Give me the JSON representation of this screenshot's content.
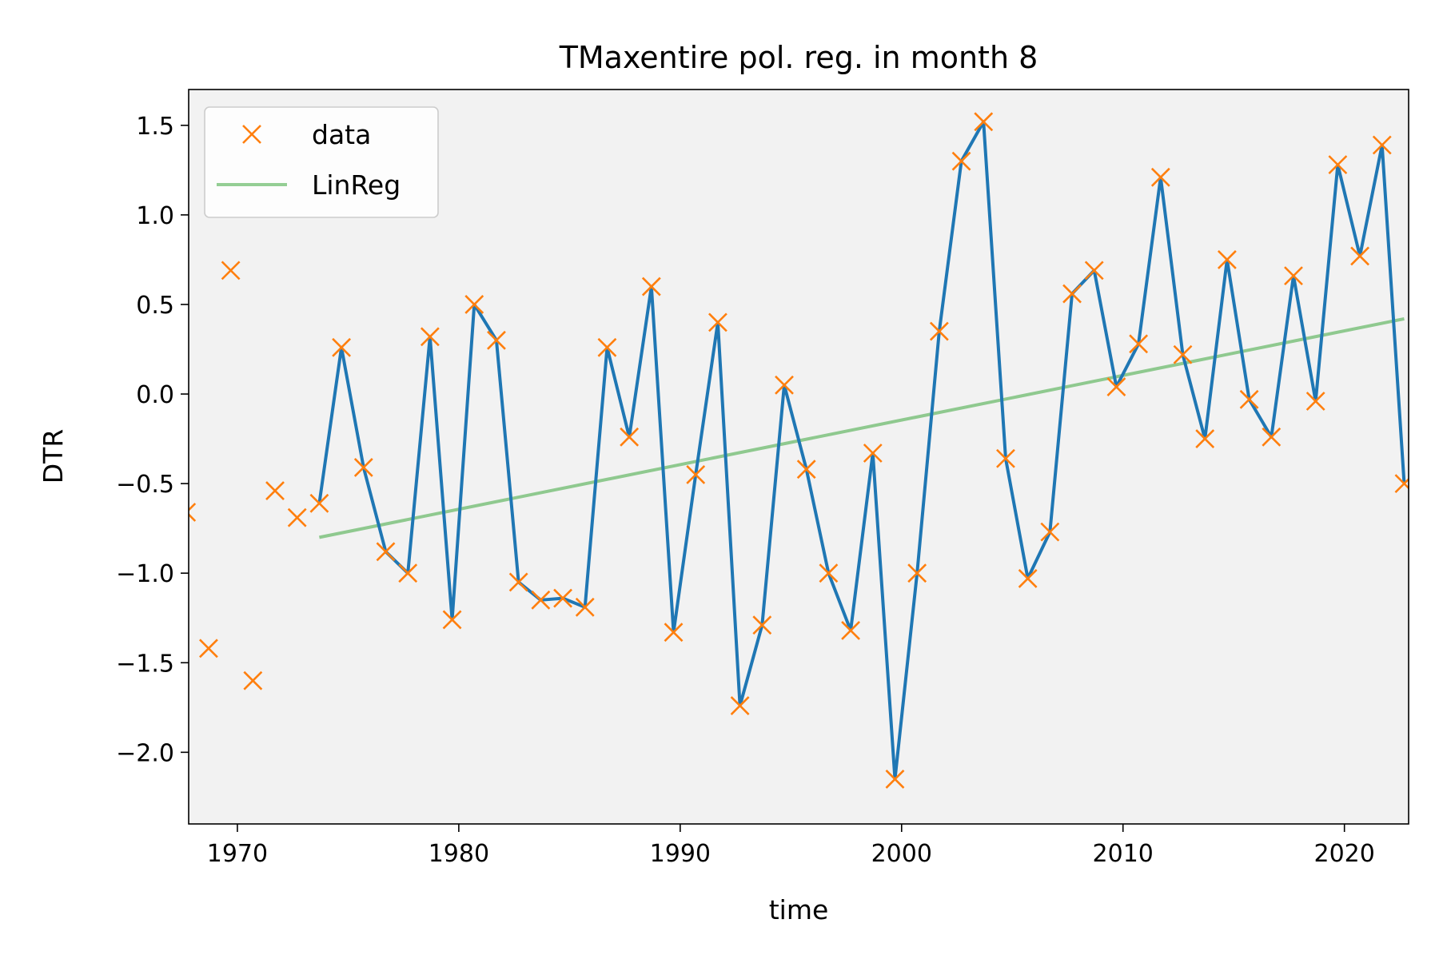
{
  "chart_data": {
    "type": "line",
    "title": "TMaxentire pol. reg. in month 8",
    "xlabel": "time",
    "ylabel": "DTR",
    "xlim": [
      1967.8,
      2022.9
    ],
    "ylim": [
      -2.4,
      1.7
    ],
    "xticks": [
      1970,
      1980,
      1990,
      2000,
      2010,
      2020
    ],
    "xtick_labels": [
      "1970",
      "1980",
      "1990",
      "2000",
      "2010",
      "2020"
    ],
    "yticks": [
      -2.0,
      -1.5,
      -1.0,
      -0.5,
      0.0,
      0.5,
      1.0,
      1.5
    ],
    "ytick_labels": [
      "−2.0",
      "−1.5",
      "−1.0",
      "−0.5",
      "0.0",
      "0.5",
      "1.0",
      "1.5"
    ],
    "background": "#f2f2f2",
    "grid": false,
    "legend_position": "top-left",
    "series": [
      {
        "name": "data",
        "style": "markers",
        "marker": "x",
        "color": "#ff7f0e",
        "x": [
          1967.7,
          1968.7,
          1969.7,
          1970.7,
          1971.7,
          1972.7,
          1973.7,
          1974.7,
          1975.7,
          1976.7,
          1977.7,
          1978.7,
          1979.7,
          1980.7,
          1981.7,
          1982.7,
          1983.7,
          1984.7,
          1985.7,
          1986.7,
          1987.7,
          1988.7,
          1989.7,
          1990.7,
          1991.7,
          1992.7,
          1993.7,
          1994.7,
          1995.7,
          1996.7,
          1997.7,
          1998.7,
          1999.7,
          2000.7,
          2001.7,
          2002.7,
          2003.7,
          2004.7,
          2005.7,
          2006.7,
          2007.7,
          2008.7,
          2009.7,
          2010.7,
          2011.7,
          2012.7,
          2013.7,
          2014.7,
          2015.7,
          2016.7,
          2017.7,
          2018.7,
          2019.7,
          2020.7,
          2021.7,
          2022.7
        ],
        "y": [
          -0.66,
          -1.42,
          0.69,
          -1.6,
          -0.54,
          -0.69,
          -0.61,
          0.26,
          -0.41,
          -0.88,
          -1.0,
          0.32,
          -1.26,
          0.5,
          0.3,
          -1.05,
          -1.15,
          -1.14,
          -1.19,
          0.26,
          -0.24,
          0.6,
          -1.33,
          -0.45,
          0.4,
          -1.74,
          -1.29,
          0.05,
          -0.42,
          -1.0,
          -1.32,
          -0.33,
          -2.15,
          -1.0,
          0.35,
          1.3,
          1.52,
          -0.36,
          -1.03,
          -0.77,
          0.56,
          0.69,
          0.04,
          0.28,
          1.21,
          0.22,
          -0.25,
          0.75,
          -0.03,
          -0.24,
          0.66,
          -0.04,
          1.28,
          0.77,
          1.39,
          -0.5
        ]
      },
      {
        "name": "",
        "style": "line",
        "color": "#1f77b4",
        "x": [
          1973.7,
          1974.7,
          1975.7,
          1976.7,
          1977.7,
          1978.7,
          1979.7,
          1980.7,
          1981.7,
          1982.7,
          1983.7,
          1984.7,
          1985.7,
          1986.7,
          1987.7,
          1988.7,
          1989.7,
          1990.7,
          1991.7,
          1992.7,
          1993.7,
          1994.7,
          1995.7,
          1996.7,
          1997.7,
          1998.7,
          1999.7,
          2000.7,
          2001.7,
          2002.7,
          2003.7,
          2004.7,
          2005.7,
          2006.7,
          2007.7,
          2008.7,
          2009.7,
          2010.7,
          2011.7,
          2012.7,
          2013.7,
          2014.7,
          2015.7,
          2016.7,
          2017.7,
          2018.7,
          2019.7,
          2020.7,
          2021.7,
          2022.7
        ],
        "y": [
          -0.61,
          0.26,
          -0.41,
          -0.88,
          -1.0,
          0.32,
          -1.26,
          0.5,
          0.3,
          -1.05,
          -1.15,
          -1.14,
          -1.19,
          0.26,
          -0.24,
          0.6,
          -1.33,
          -0.45,
          0.4,
          -1.74,
          -1.29,
          0.05,
          -0.42,
          -1.0,
          -1.32,
          -0.33,
          -2.15,
          -1.0,
          0.35,
          1.3,
          1.52,
          -0.36,
          -1.03,
          -0.77,
          0.56,
          0.69,
          0.04,
          0.28,
          1.21,
          0.22,
          -0.25,
          0.75,
          -0.03,
          -0.24,
          0.66,
          -0.04,
          1.28,
          0.77,
          1.39,
          -0.5
        ]
      },
      {
        "name": "LinReg",
        "style": "line",
        "color": "#2ca02c",
        "x": [
          1973.7,
          2022.7
        ],
        "y": [
          -0.8,
          0.42
        ]
      }
    ]
  }
}
